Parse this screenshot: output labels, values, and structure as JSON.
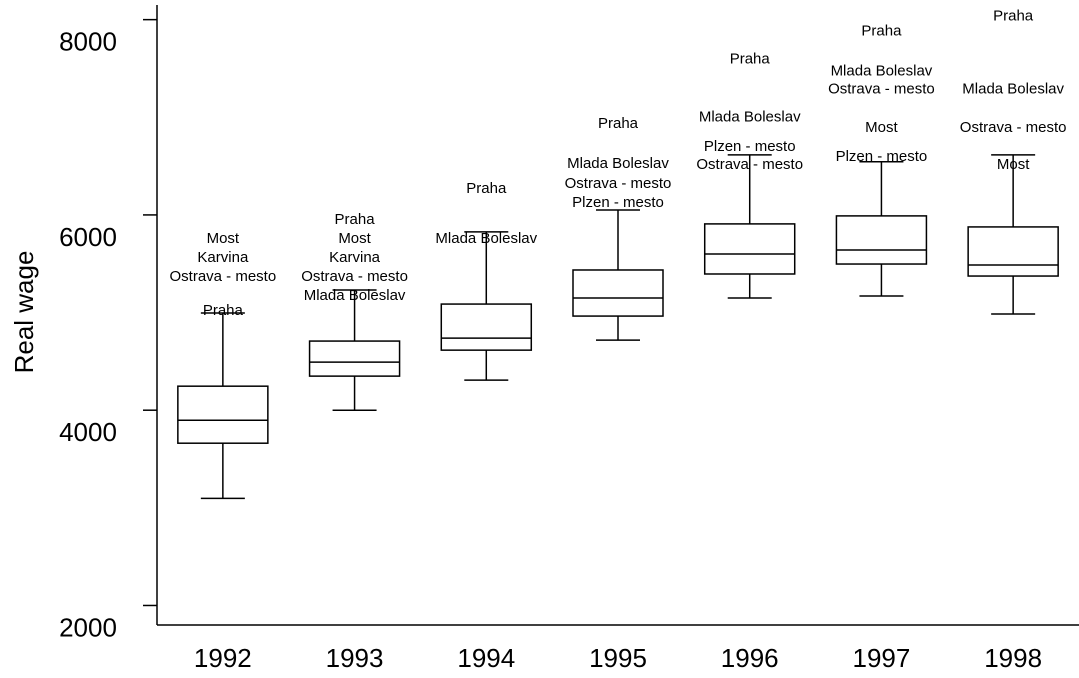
{
  "chart_data": {
    "type": "box",
    "y_label": "Real wage",
    "categories": [
      "1992",
      "1993",
      "1994",
      "1995",
      "1996",
      "1997",
      "1998"
    ],
    "boxes": [
      {
        "min": 3097,
        "q1": 3662,
        "median": 3897,
        "q3": 4246,
        "max": 4995,
        "outliers": [
          {
            "label": "Most",
            "value": 5754
          },
          {
            "label": "Karvina",
            "value": 5559
          },
          {
            "label": "Ostrava - mesto",
            "value": 5364
          },
          {
            "label": "Praha",
            "value": 5015
          }
        ]
      },
      {
        "min": 4000,
        "q1": 4349,
        "median": 4492,
        "q3": 4708,
        "max": 5231,
        "outliers": [
          {
            "label": "Praha",
            "value": 5949
          },
          {
            "label": "Most",
            "value": 5754
          },
          {
            "label": "Karvina",
            "value": 5559
          },
          {
            "label": "Ostrava - mesto",
            "value": 5364
          },
          {
            "label": "Mlada Boleslav",
            "value": 5169
          }
        ]
      },
      {
        "min": 4308,
        "q1": 4615,
        "median": 4738,
        "q3": 5087,
        "max": 5826,
        "outliers": [
          {
            "label": "Praha",
            "value": 6267
          },
          {
            "label": "Mlada Boleslav",
            "value": 5754
          }
        ]
      },
      {
        "min": 4718,
        "q1": 4964,
        "median": 5149,
        "q3": 5436,
        "max": 6051,
        "outliers": [
          {
            "label": "Praha",
            "value": 6933
          },
          {
            "label": "Mlada Boleslav",
            "value": 6523
          },
          {
            "label": "Ostrava - mesto",
            "value": 6318
          },
          {
            "label": "Plzen - mesto",
            "value": 6123
          }
        ]
      },
      {
        "min": 5149,
        "q1": 5395,
        "median": 5600,
        "q3": 5908,
        "max": 6615,
        "outliers": [
          {
            "label": "Praha",
            "value": 7590
          },
          {
            "label": "Mlada Boleslav",
            "value": 6995
          },
          {
            "label": "Plzen - mesto",
            "value": 6697
          },
          {
            "label": "Ostrava - mesto",
            "value": 6513
          }
        ]
      },
      {
        "min": 5169,
        "q1": 5497,
        "median": 5641,
        "q3": 5990,
        "max": 6544,
        "outliers": [
          {
            "label": "Praha",
            "value": 7877
          },
          {
            "label": "Mlada Boleslav",
            "value": 7467
          },
          {
            "label": "Ostrava - mesto",
            "value": 7282
          },
          {
            "label": "Most",
            "value": 6892
          },
          {
            "label": "Plzen - mesto",
            "value": 6595
          }
        ]
      },
      {
        "min": 4985,
        "q1": 5374,
        "median": 5487,
        "q3": 5877,
        "max": 6615,
        "outliers": [
          {
            "label": "Praha",
            "value": 8031
          },
          {
            "label": "Mlada Boleslav",
            "value": 7282
          },
          {
            "label": "Ostrava - mesto",
            "value": 6892
          },
          {
            "label": "Most",
            "value": 6513
          }
        ]
      }
    ],
    "ylim": [
      1800,
      8150
    ],
    "yticks": [
      2000,
      4000,
      6000,
      8000
    ]
  }
}
